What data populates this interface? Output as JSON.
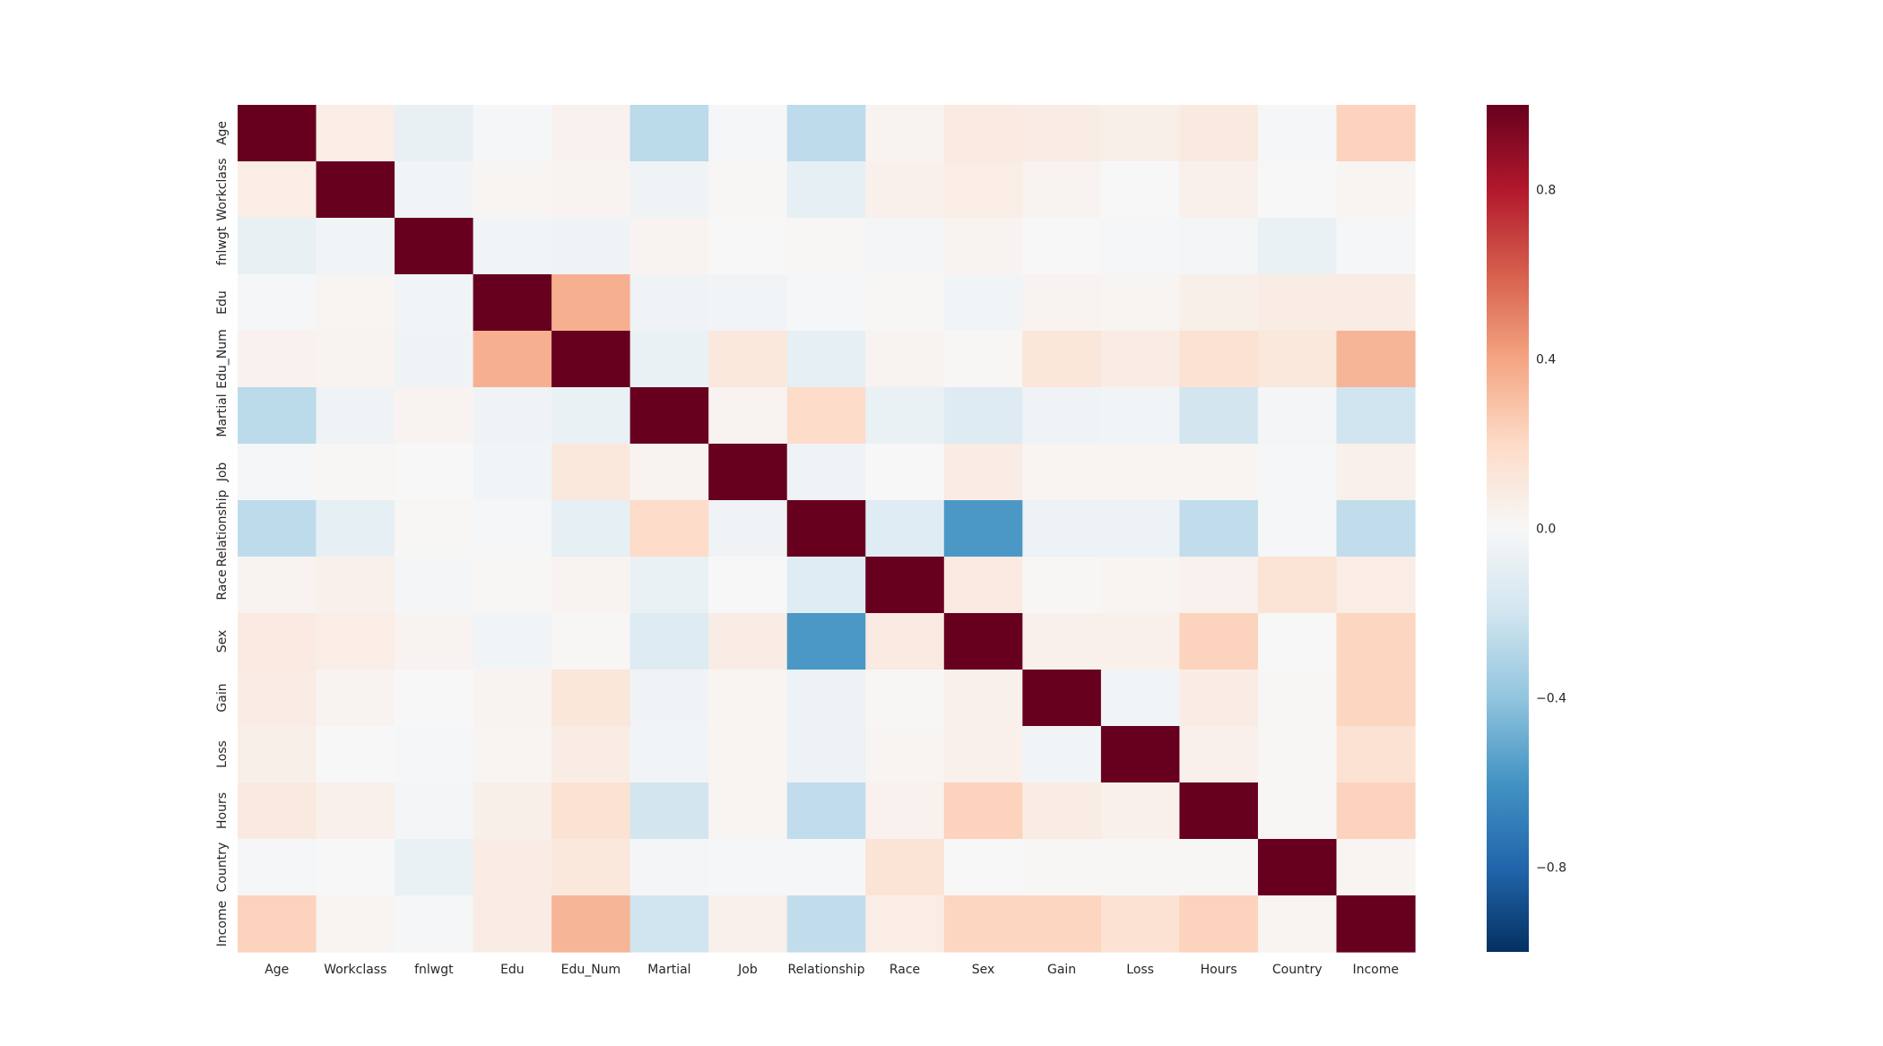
{
  "chart_data": {
    "type": "heatmap",
    "title": "",
    "xlabel": "",
    "ylabel": "",
    "labels": [
      "Age",
      "Workclass",
      "fnlwgt",
      "Edu",
      "Edu_Num",
      "Martial",
      "Job",
      "Relationship",
      "Race",
      "Sex",
      "Gain",
      "Loss",
      "Hours",
      "Country",
      "Income"
    ],
    "values": [
      [
        1.0,
        0.07,
        -0.08,
        -0.01,
        0.04,
        -0.27,
        -0.01,
        -0.26,
        0.03,
        0.09,
        0.08,
        0.06,
        0.1,
        -0.01,
        0.23
      ],
      [
        0.07,
        1.0,
        -0.03,
        0.02,
        0.03,
        -0.04,
        0.01,
        -0.09,
        0.05,
        0.07,
        0.03,
        0.0,
        0.05,
        0.0,
        0.02
      ],
      [
        -0.08,
        -0.03,
        1.0,
        -0.03,
        -0.04,
        0.03,
        0.0,
        0.01,
        -0.02,
        0.03,
        0.0,
        -0.01,
        -0.02,
        -0.07,
        -0.01
      ],
      [
        -0.01,
        0.02,
        -0.03,
        1.0,
        0.36,
        -0.04,
        -0.03,
        -0.01,
        0.01,
        -0.03,
        0.03,
        0.02,
        0.06,
        0.08,
        0.08
      ],
      [
        0.04,
        0.03,
        -0.04,
        0.36,
        1.0,
        -0.07,
        0.11,
        -0.09,
        0.03,
        0.01,
        0.12,
        0.08,
        0.15,
        0.11,
        0.34
      ],
      [
        -0.27,
        -0.04,
        0.03,
        -0.04,
        -0.07,
        1.0,
        0.03,
        0.19,
        -0.07,
        -0.13,
        -0.04,
        -0.03,
        -0.19,
        -0.02,
        -0.2
      ],
      [
        -0.01,
        0.01,
        0.0,
        -0.03,
        0.11,
        0.03,
        1.0,
        -0.04,
        0.0,
        0.08,
        0.02,
        0.02,
        0.02,
        -0.01,
        0.05
      ],
      [
        -0.26,
        -0.09,
        0.01,
        -0.01,
        -0.09,
        0.19,
        -0.04,
        1.0,
        -0.12,
        -0.58,
        -0.06,
        -0.06,
        -0.25,
        -0.01,
        -0.25
      ],
      [
        0.03,
        0.05,
        -0.02,
        0.01,
        0.03,
        -0.07,
        0.0,
        -0.12,
        1.0,
        0.09,
        0.01,
        0.02,
        0.04,
        0.14,
        0.07
      ],
      [
        0.09,
        0.07,
        0.03,
        -0.03,
        0.01,
        -0.13,
        0.08,
        -0.58,
        0.09,
        1.0,
        0.05,
        0.05,
        0.23,
        0.0,
        0.22
      ],
      [
        0.08,
        0.03,
        0.0,
        0.03,
        0.12,
        -0.04,
        0.02,
        -0.06,
        0.01,
        0.05,
        1.0,
        -0.03,
        0.08,
        0.01,
        0.22
      ],
      [
        0.06,
        0.0,
        -0.01,
        0.02,
        0.08,
        -0.03,
        0.02,
        -0.06,
        0.02,
        0.05,
        -0.03,
        1.0,
        0.05,
        0.01,
        0.15
      ],
      [
        0.1,
        0.05,
        -0.02,
        0.06,
        0.15,
        -0.19,
        0.02,
        -0.25,
        0.04,
        0.23,
        0.08,
        0.05,
        1.0,
        0.01,
        0.23
      ],
      [
        -0.01,
        0.0,
        -0.07,
        0.08,
        0.11,
        -0.02,
        -0.01,
        -0.01,
        0.14,
        0.0,
        0.01,
        0.01,
        0.01,
        1.0,
        0.02
      ],
      [
        0.23,
        0.02,
        -0.01,
        0.08,
        0.34,
        -0.2,
        0.05,
        -0.25,
        0.07,
        0.22,
        0.22,
        0.15,
        0.23,
        0.02,
        1.0
      ]
    ],
    "colormap": "RdBu_r",
    "vmin": -1.0,
    "vmax": 1.0,
    "colorbar": {
      "ticks": [
        0.8,
        0.4,
        0.0,
        -0.4,
        -0.8
      ],
      "tick_labels": [
        "0.8",
        "0.4",
        "0.0",
        "−0.4",
        "−0.8"
      ],
      "position": "right"
    },
    "grid": false
  }
}
